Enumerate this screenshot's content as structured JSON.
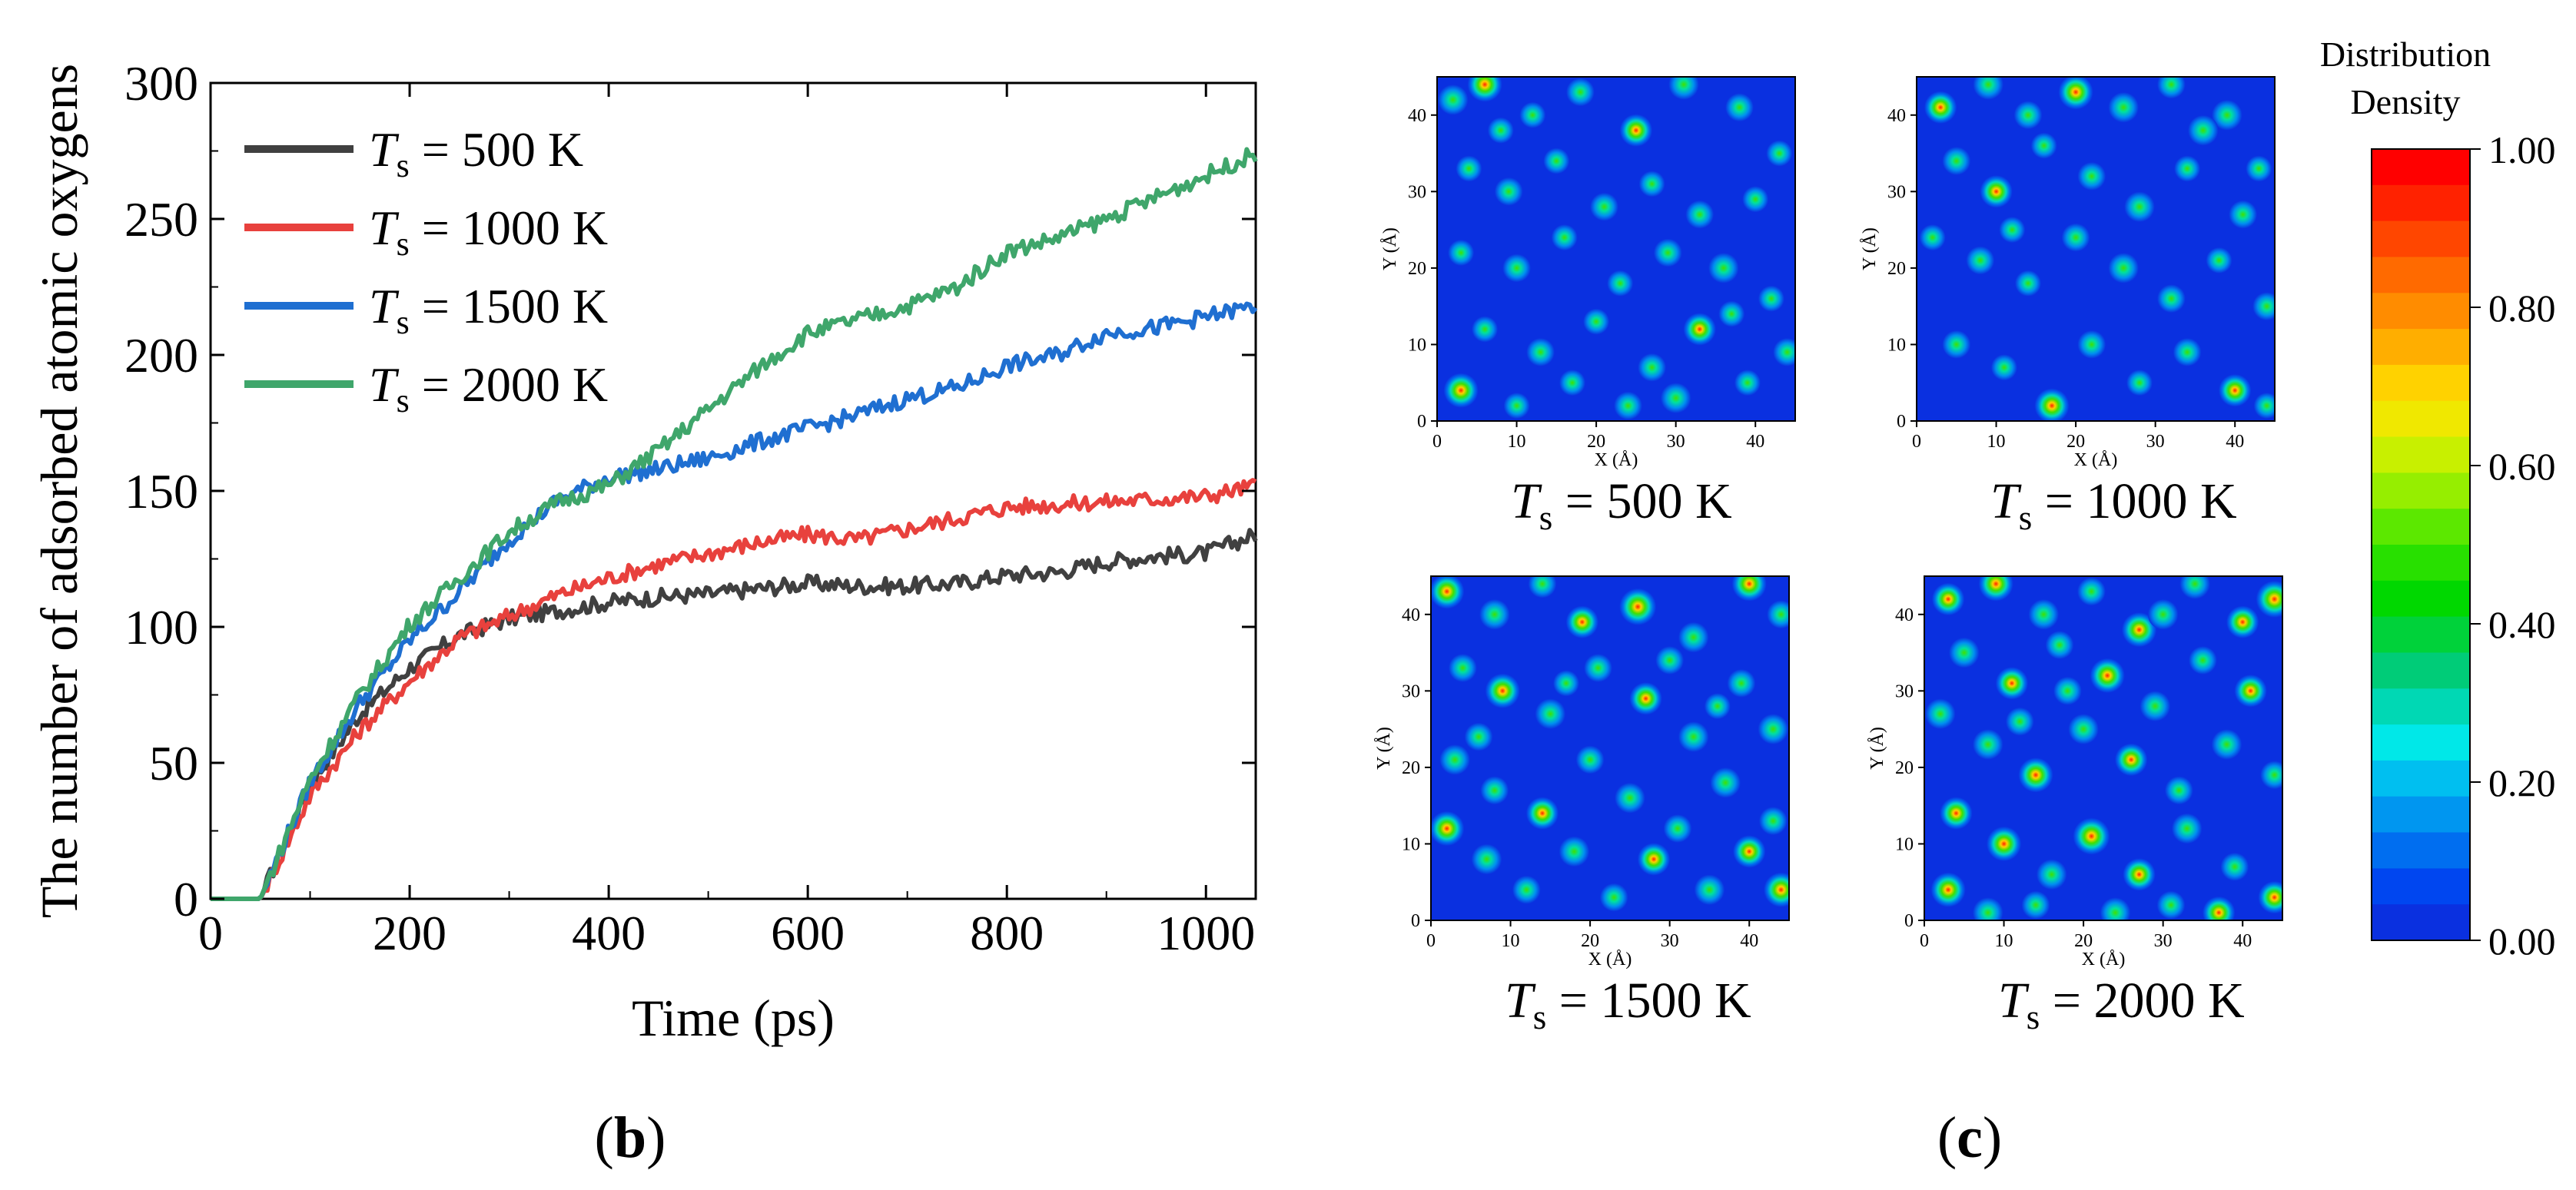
{
  "colors": {
    "series_500": "#404040",
    "series_1000": "#e8413d",
    "series_1500": "#1f6fd1",
    "series_2000": "#3fa66b",
    "map_bg": "#0a30e0",
    "axis": "#000000"
  },
  "panel_b": {
    "label": "b",
    "paren_open": "(",
    "paren_close": ")"
  },
  "panel_c": {
    "label": "c",
    "paren_open": "(",
    "paren_close": ")"
  },
  "chart_data": [
    {
      "type": "line",
      "title": "",
      "xlabel": "Time (ps)",
      "ylabel": "The number of adsorbed atomic oxygens",
      "xlim": [
        0,
        1050
      ],
      "ylim": [
        0,
        300
      ],
      "x_ticks": [
        "0",
        "200",
        "400",
        "600",
        "800",
        "1000"
      ],
      "y_ticks": [
        "0",
        "50",
        "100",
        "150",
        "200",
        "250",
        "300"
      ],
      "legend_position": "top-left",
      "x": [
        0,
        50,
        100,
        150,
        200,
        250,
        300,
        350,
        400,
        450,
        500,
        550,
        600,
        650,
        700,
        750,
        800,
        850,
        900,
        950,
        1000,
        1050
      ],
      "series": [
        {
          "name": "T_s = 500 K",
          "legend_symbol": "T",
          "legend_sub": "s",
          "legend_rest": " = 500 K",
          "color_key": "series_500",
          "values": [
            0,
            0,
            42,
            68,
            85,
            97,
            103,
            106,
            109,
            111,
            112,
            114,
            116,
            115,
            115,
            116,
            119,
            120,
            124,
            126,
            127,
            134
          ]
        },
        {
          "name": "T_s = 1000 K",
          "legend_symbol": "T",
          "legend_sub": "s",
          "legend_rest": " = 1000 K",
          "color_key": "series_1000",
          "values": [
            0,
            0,
            38,
            62,
            80,
            96,
            104,
            112,
            118,
            123,
            127,
            131,
            134,
            132,
            136,
            140,
            144,
            145,
            146,
            147,
            148,
            152
          ]
        },
        {
          "name": "T_s = 1500 K",
          "legend_symbol": "T",
          "legend_sub": "s",
          "legend_rest": " = 1500 K",
          "color_key": "series_1500",
          "values": [
            0,
            0,
            43,
            72,
            95,
            113,
            132,
            147,
            155,
            158,
            162,
            168,
            173,
            178,
            184,
            188,
            196,
            200,
            208,
            210,
            214,
            218
          ]
        },
        {
          "name": "T_s = 2000 K",
          "legend_symbol": "T",
          "legend_sub": "s",
          "legend_rest": " = 2000 K",
          "color_key": "series_2000",
          "values": [
            0,
            0,
            44,
            75,
            101,
            118,
            135,
            146,
            152,
            165,
            180,
            195,
            208,
            213,
            218,
            225,
            238,
            243,
            250,
            258,
            266,
            274
          ]
        }
      ]
    },
    {
      "type": "heatmap",
      "colorbar": {
        "title_line1": "Distribution",
        "title_line2": "Density",
        "ticks": [
          "1.00",
          "0.80",
          "0.60",
          "0.40",
          "0.20",
          "0.00"
        ],
        "range": [
          0,
          1
        ],
        "colors": [
          "#ff0000",
          "#ff2200",
          "#ff4600",
          "#ff6a00",
          "#ff8c00",
          "#ffae00",
          "#ffd200",
          "#f0e800",
          "#c8f000",
          "#96ee00",
          "#5ce800",
          "#28e000",
          "#00d800",
          "#00d23a",
          "#00cc78",
          "#00d8b4",
          "#00e8e8",
          "#00bff0",
          "#0096f0",
          "#006ef0",
          "#0046f0",
          "#0a30e0"
        ]
      },
      "maps": [
        {
          "label_symbol": "T",
          "label_sub": "s",
          "label_rest": " = 500 K",
          "xlabel": "X (Å)",
          "ylabel": "Y (Å)",
          "ticks": [
            "0",
            "10",
            "20",
            "30",
            "40"
          ],
          "xlim": [
            0,
            45
          ],
          "ylim": [
            0,
            45
          ],
          "spots": [
            [
              2,
              42,
              0.7
            ],
            [
              6,
              44,
              0.9
            ],
            [
              12,
              40,
              0.5
            ],
            [
              18,
              43,
              0.6
            ],
            [
              25,
              38,
              0.8
            ],
            [
              31,
              44,
              0.7
            ],
            [
              38,
              41,
              0.6
            ],
            [
              43,
              35,
              0.5
            ],
            [
              4,
              33,
              0.5
            ],
            [
              9,
              30,
              0.6
            ],
            [
              15,
              34,
              0.5
            ],
            [
              21,
              28,
              0.6
            ],
            [
              27,
              31,
              0.5
            ],
            [
              33,
              27,
              0.6
            ],
            [
              40,
              29,
              0.5
            ],
            [
              3,
              22,
              0.5
            ],
            [
              10,
              20,
              0.6
            ],
            [
              16,
              24,
              0.5
            ],
            [
              23,
              18,
              0.5
            ],
            [
              29,
              22,
              0.6
            ],
            [
              36,
              20,
              0.7
            ],
            [
              42,
              16,
              0.5
            ],
            [
              6,
              12,
              0.5
            ],
            [
              13,
              9,
              0.6
            ],
            [
              20,
              13,
              0.5
            ],
            [
              27,
              7,
              0.6
            ],
            [
              33,
              12,
              0.8
            ],
            [
              39,
              5,
              0.5
            ],
            [
              44,
              9,
              0.6
            ],
            [
              3,
              4,
              0.9
            ],
            [
              10,
              2,
              0.5
            ],
            [
              17,
              5,
              0.5
            ],
            [
              24,
              2,
              0.6
            ],
            [
              30,
              3,
              0.7
            ],
            [
              37,
              14,
              0.5
            ],
            [
              8,
              38,
              0.5
            ]
          ]
        },
        {
          "label_symbol": "T",
          "label_sub": "s",
          "label_rest": " = 1000 K",
          "xlabel": "X (Å)",
          "ylabel": "Y (Å)",
          "ticks": [
            "0",
            "10",
            "20",
            "30",
            "40"
          ],
          "xlim": [
            0,
            45
          ],
          "ylim": [
            0,
            45
          ],
          "spots": [
            [
              3,
              41,
              0.8
            ],
            [
              9,
              44,
              0.7
            ],
            [
              14,
              40,
              0.6
            ],
            [
              20,
              43,
              0.9
            ],
            [
              26,
              41,
              0.7
            ],
            [
              32,
              44,
              0.6
            ],
            [
              39,
              40,
              0.7
            ],
            [
              43,
              33,
              0.5
            ],
            [
              5,
              34,
              0.6
            ],
            [
              10,
              30,
              0.8
            ],
            [
              16,
              36,
              0.5
            ],
            [
              22,
              32,
              0.6
            ],
            [
              28,
              28,
              0.7
            ],
            [
              34,
              33,
              0.5
            ],
            [
              41,
              27,
              0.6
            ],
            [
              2,
              24,
              0.5
            ],
            [
              8,
              21,
              0.6
            ],
            [
              14,
              18,
              0.5
            ],
            [
              20,
              24,
              0.6
            ],
            [
              26,
              20,
              0.7
            ],
            [
              32,
              16,
              0.6
            ],
            [
              38,
              21,
              0.5
            ],
            [
              44,
              15,
              0.6
            ],
            [
              5,
              10,
              0.6
            ],
            [
              11,
              7,
              0.5
            ],
            [
              17,
              2,
              0.9
            ],
            [
              22,
              10,
              0.6
            ],
            [
              28,
              5,
              0.5
            ],
            [
              34,
              9,
              0.6
            ],
            [
              40,
              4,
              0.8
            ],
            [
              44,
              2,
              0.5
            ],
            [
              36,
              38,
              0.7
            ],
            [
              12,
              25,
              0.5
            ]
          ]
        },
        {
          "label_symbol": "T",
          "label_sub": "s",
          "label_rest": " = 1500 K",
          "xlabel": "X (Å)",
          "ylabel": "Y (Å)",
          "ticks": [
            "0",
            "10",
            "20",
            "30",
            "40"
          ],
          "xlim": [
            0,
            45
          ],
          "ylim": [
            0,
            45
          ],
          "spots": [
            [
              2,
              43,
              0.9
            ],
            [
              8,
              40,
              0.7
            ],
            [
              14,
              44,
              0.6
            ],
            [
              19,
              39,
              0.8
            ],
            [
              26,
              41,
              1.0
            ],
            [
              33,
              37,
              0.7
            ],
            [
              40,
              44,
              0.9
            ],
            [
              44,
              40,
              0.6
            ],
            [
              4,
              33,
              0.6
            ],
            [
              9,
              30,
              0.9
            ],
            [
              15,
              27,
              0.7
            ],
            [
              21,
              33,
              0.6
            ],
            [
              27,
              29,
              0.8
            ],
            [
              33,
              24,
              0.7
            ],
            [
              39,
              31,
              0.6
            ],
            [
              43,
              25,
              0.7
            ],
            [
              3,
              21,
              0.7
            ],
            [
              8,
              17,
              0.6
            ],
            [
              14,
              14,
              0.8
            ],
            [
              20,
              21,
              0.6
            ],
            [
              25,
              16,
              0.7
            ],
            [
              31,
              12,
              0.6
            ],
            [
              37,
              18,
              0.7
            ],
            [
              43,
              13,
              0.6
            ],
            [
              2,
              12,
              0.9
            ],
            [
              7,
              8,
              0.7
            ],
            [
              12,
              4,
              0.6
            ],
            [
              18,
              9,
              0.7
            ],
            [
              23,
              3,
              0.6
            ],
            [
              28,
              8,
              0.8
            ],
            [
              35,
              4,
              0.7
            ],
            [
              40,
              9,
              0.8
            ],
            [
              44,
              4,
              0.9
            ],
            [
              6,
              24,
              0.6
            ],
            [
              17,
              31,
              0.5
            ],
            [
              30,
              34,
              0.6
            ],
            [
              36,
              28,
              0.5
            ]
          ]
        },
        {
          "label_symbol": "T",
          "label_sub": "s",
          "label_rest": " = 2000 K",
          "xlabel": "X (Å)",
          "ylabel": "Y (Å)",
          "ticks": [
            "0",
            "10",
            "20",
            "30",
            "40"
          ],
          "xlim": [
            0,
            45
          ],
          "ylim": [
            0,
            45
          ],
          "spots": [
            [
              3,
              42,
              0.8
            ],
            [
              9,
              44,
              0.9
            ],
            [
              15,
              40,
              0.7
            ],
            [
              21,
              43,
              0.6
            ],
            [
              27,
              38,
              0.9
            ],
            [
              34,
              44,
              0.7
            ],
            [
              40,
              39,
              0.8
            ],
            [
              44,
              42,
              1.0
            ],
            [
              5,
              35,
              0.7
            ],
            [
              11,
              31,
              0.8
            ],
            [
              17,
              36,
              0.6
            ],
            [
              23,
              32,
              0.9
            ],
            [
              29,
              28,
              0.7
            ],
            [
              35,
              34,
              0.6
            ],
            [
              41,
              30,
              0.8
            ],
            [
              2,
              27,
              0.7
            ],
            [
              8,
              23,
              0.7
            ],
            [
              14,
              19,
              0.9
            ],
            [
              20,
              25,
              0.7
            ],
            [
              26,
              21,
              0.8
            ],
            [
              32,
              17,
              0.6
            ],
            [
              38,
              23,
              0.7
            ],
            [
              44,
              19,
              0.6
            ],
            [
              4,
              14,
              0.8
            ],
            [
              10,
              10,
              0.9
            ],
            [
              16,
              6,
              0.7
            ],
            [
              21,
              11,
              1.0
            ],
            [
              27,
              6,
              0.8
            ],
            [
              33,
              12,
              0.7
            ],
            [
              39,
              7,
              0.6
            ],
            [
              44,
              3,
              0.8
            ],
            [
              3,
              4,
              0.9
            ],
            [
              8,
              1,
              0.7
            ],
            [
              14,
              2,
              0.6
            ],
            [
              24,
              1,
              0.7
            ],
            [
              31,
              2,
              0.6
            ],
            [
              37,
              1,
              0.8
            ],
            [
              18,
              30,
              0.6
            ],
            [
              30,
              40,
              0.7
            ],
            [
              12,
              26,
              0.6
            ]
          ]
        }
      ]
    }
  ]
}
